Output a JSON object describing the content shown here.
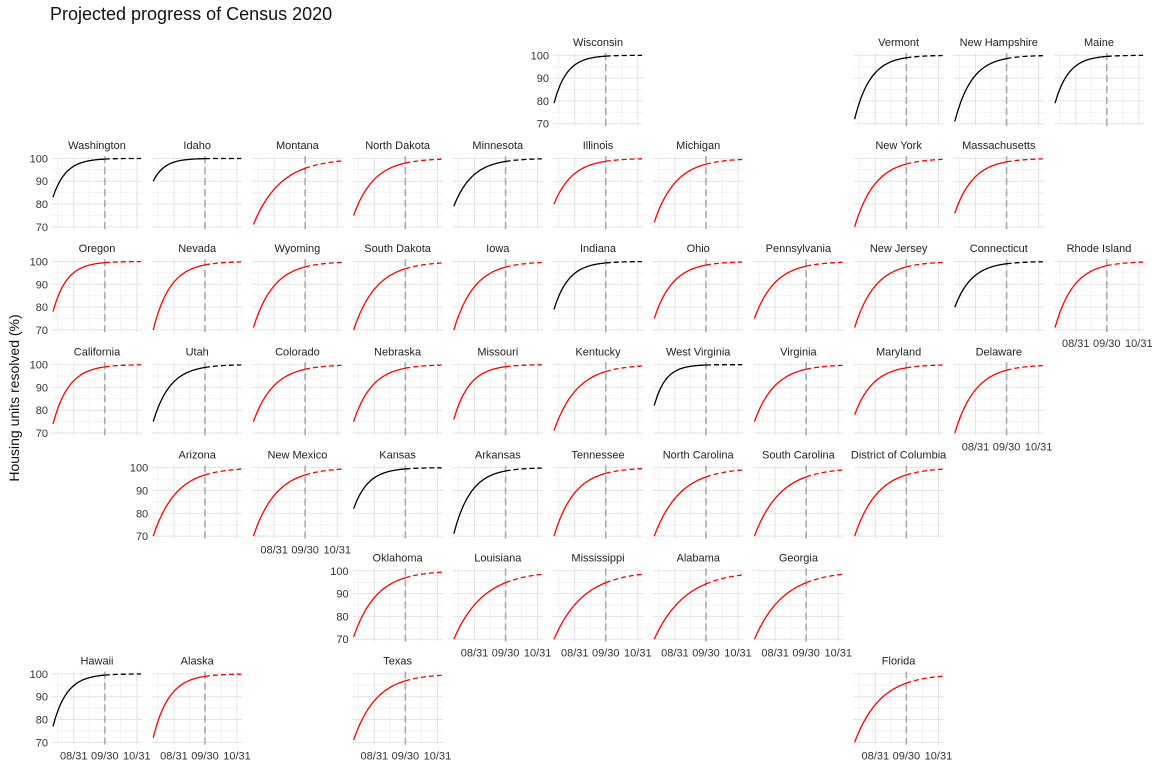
{
  "chart_data": {
    "type": "line",
    "title": "Projected progress of Census 2020",
    "xlabel": "",
    "ylabel": "Housing units resolved (%)",
    "x_ticks": [
      "08/31",
      "09/30",
      "10/31"
    ],
    "x_range": [
      "08/10",
      "11/05"
    ],
    "y_ticks": [
      70,
      80,
      90,
      100
    ],
    "ylim": [
      69,
      101
    ],
    "reference_line": "09/30",
    "colors": {
      "on_track": "#000000",
      "behind": "#ff0000",
      "ref_line": "#aaaaaa",
      "grid": "#e3e3e3"
    },
    "legend": "none",
    "facets": [
      {
        "state": "Wisconsin",
        "row": 0,
        "col": 5,
        "color": "black",
        "start": 79,
        "k": 0.08
      },
      {
        "state": "Vermont",
        "row": 0,
        "col": 8,
        "color": "black",
        "start": 72,
        "k": 0.065
      },
      {
        "state": "New Hampshire",
        "row": 0,
        "col": 9,
        "color": "black",
        "start": 71,
        "k": 0.06
      },
      {
        "state": "Maine",
        "row": 0,
        "col": 10,
        "color": "black",
        "start": 79,
        "k": 0.075
      },
      {
        "state": "Washington",
        "row": 1,
        "col": 0,
        "color": "black",
        "start": 83,
        "k": 0.08
      },
      {
        "state": "Idaho",
        "row": 1,
        "col": 1,
        "color": "black",
        "start": 90,
        "k": 0.09
      },
      {
        "state": "Montana",
        "row": 1,
        "col": 2,
        "color": "red",
        "start": 71,
        "k": 0.038
      },
      {
        "state": "North Dakota",
        "row": 1,
        "col": 3,
        "color": "red",
        "start": 75,
        "k": 0.05
      },
      {
        "state": "Minnesota",
        "row": 1,
        "col": 4,
        "color": "black",
        "start": 79,
        "k": 0.055
      },
      {
        "state": "Illinois",
        "row": 1,
        "col": 5,
        "color": "red",
        "start": 80,
        "k": 0.055
      },
      {
        "state": "Michigan",
        "row": 1,
        "col": 6,
        "color": "red",
        "start": 72,
        "k": 0.048
      },
      {
        "state": "New York",
        "row": 1,
        "col": 8,
        "color": "red",
        "start": 70,
        "k": 0.05
      },
      {
        "state": "Massachusetts",
        "row": 1,
        "col": 9,
        "color": "red",
        "start": 76,
        "k": 0.055
      },
      {
        "state": "Oregon",
        "row": 2,
        "col": 0,
        "color": "red",
        "start": 78,
        "k": 0.075
      },
      {
        "state": "Nevada",
        "row": 2,
        "col": 1,
        "color": "red",
        "start": 70,
        "k": 0.06
      },
      {
        "state": "Wyoming",
        "row": 2,
        "col": 2,
        "color": "red",
        "start": 71,
        "k": 0.05
      },
      {
        "state": "South Dakota",
        "row": 2,
        "col": 3,
        "color": "red",
        "start": 70,
        "k": 0.045
      },
      {
        "state": "Iowa",
        "row": 2,
        "col": 4,
        "color": "red",
        "start": 70,
        "k": 0.05
      },
      {
        "state": "Indiana",
        "row": 2,
        "col": 5,
        "color": "black",
        "start": 79,
        "k": 0.07
      },
      {
        "state": "Ohio",
        "row": 2,
        "col": 6,
        "color": "red",
        "start": 75,
        "k": 0.055
      },
      {
        "state": "Pennsylvania",
        "row": 2,
        "col": 7,
        "color": "red",
        "start": 75,
        "k": 0.05
      },
      {
        "state": "New Jersey",
        "row": 2,
        "col": 8,
        "color": "red",
        "start": 71,
        "k": 0.05
      },
      {
        "state": "Connecticut",
        "row": 2,
        "col": 9,
        "color": "black",
        "start": 80,
        "k": 0.06
      },
      {
        "state": "Rhode Island",
        "row": 2,
        "col": 10,
        "color": "red",
        "start": 71,
        "k": 0.055
      },
      {
        "state": "California",
        "row": 3,
        "col": 0,
        "color": "red",
        "start": 74,
        "k": 0.065
      },
      {
        "state": "Utah",
        "row": 3,
        "col": 1,
        "color": "black",
        "start": 75,
        "k": 0.06
      },
      {
        "state": "Colorado",
        "row": 3,
        "col": 2,
        "color": "red",
        "start": 75,
        "k": 0.05
      },
      {
        "state": "Nebraska",
        "row": 3,
        "col": 3,
        "color": "red",
        "start": 75,
        "k": 0.055
      },
      {
        "state": "Missouri",
        "row": 3,
        "col": 4,
        "color": "red",
        "start": 76,
        "k": 0.065
      },
      {
        "state": "Kentucky",
        "row": 3,
        "col": 5,
        "color": "red",
        "start": 71,
        "k": 0.045
      },
      {
        "state": "West Virginia",
        "row": 3,
        "col": 6,
        "color": "black",
        "start": 82,
        "k": 0.09
      },
      {
        "state": "Virginia",
        "row": 3,
        "col": 7,
        "color": "red",
        "start": 75,
        "k": 0.05
      },
      {
        "state": "Maryland",
        "row": 3,
        "col": 8,
        "color": "red",
        "start": 78,
        "k": 0.055
      },
      {
        "state": "Delaware",
        "row": 3,
        "col": 9,
        "color": "red",
        "start": 70,
        "k": 0.05
      },
      {
        "state": "Arizona",
        "row": 4,
        "col": 1,
        "color": "red",
        "start": 70,
        "k": 0.045
      },
      {
        "state": "New Mexico",
        "row": 4,
        "col": 2,
        "color": "red",
        "start": 70,
        "k": 0.045
      },
      {
        "state": "Kansas",
        "row": 4,
        "col": 3,
        "color": "black",
        "start": 82,
        "k": 0.07
      },
      {
        "state": "Arkansas",
        "row": 4,
        "col": 4,
        "color": "black",
        "start": 71,
        "k": 0.06
      },
      {
        "state": "Tennessee",
        "row": 4,
        "col": 5,
        "color": "red",
        "start": 70,
        "k": 0.05
      },
      {
        "state": "North Carolina",
        "row": 4,
        "col": 6,
        "color": "red",
        "start": 70,
        "k": 0.04
      },
      {
        "state": "South Carolina",
        "row": 4,
        "col": 7,
        "color": "red",
        "start": 70,
        "k": 0.04
      },
      {
        "state": "District of Columbia",
        "row": 4,
        "col": 8,
        "color": "red",
        "start": 70,
        "k": 0.045
      },
      {
        "state": "Oklahoma",
        "row": 5,
        "col": 3,
        "color": "red",
        "start": 71,
        "k": 0.045
      },
      {
        "state": "Louisiana",
        "row": 5,
        "col": 4,
        "color": "red",
        "start": 70,
        "k": 0.035
      },
      {
        "state": "Mississippi",
        "row": 5,
        "col": 5,
        "color": "red",
        "start": 70,
        "k": 0.035
      },
      {
        "state": "Alabama",
        "row": 5,
        "col": 6,
        "color": "red",
        "start": 70,
        "k": 0.033
      },
      {
        "state": "Georgia",
        "row": 5,
        "col": 7,
        "color": "red",
        "start": 70,
        "k": 0.035
      },
      {
        "state": "Hawaii",
        "row": 6,
        "col": 0,
        "color": "black",
        "start": 77,
        "k": 0.075
      },
      {
        "state": "Alaska",
        "row": 6,
        "col": 1,
        "color": "red",
        "start": 72,
        "k": 0.065
      },
      {
        "state": "Texas",
        "row": 6,
        "col": 3,
        "color": "red",
        "start": 71,
        "k": 0.045
      },
      {
        "state": "Florida",
        "row": 6,
        "col": 8,
        "color": "red",
        "start": 70,
        "k": 0.04
      }
    ]
  }
}
